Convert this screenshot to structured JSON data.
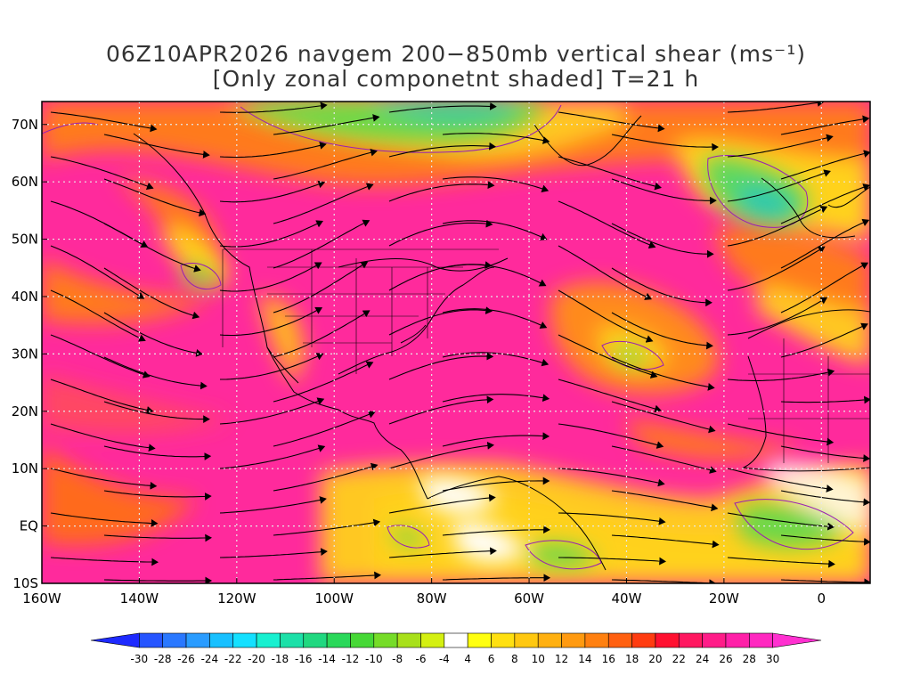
{
  "title": {
    "line1": "06Z10APR2026 navgem 200−850mb vertical shear (ms⁻¹)",
    "line2": "[Only zonal componetnt shaded] T=21 h"
  },
  "map": {
    "lon_range": [
      -160,
      10
    ],
    "lat_range": [
      -10,
      74
    ],
    "lat_ticks": [
      {
        "value": 70,
        "label": "70N"
      },
      {
        "value": 60,
        "label": "60N"
      },
      {
        "value": 50,
        "label": "50N"
      },
      {
        "value": 40,
        "label": "40N"
      },
      {
        "value": 30,
        "label": "30N"
      },
      {
        "value": 20,
        "label": "20N"
      },
      {
        "value": 10,
        "label": "10N"
      },
      {
        "value": 0,
        "label": "EQ"
      },
      {
        "value": -10,
        "label": "10S"
      }
    ],
    "lon_ticks": [
      {
        "value": -160,
        "label": "160W"
      },
      {
        "value": -140,
        "label": "140W"
      },
      {
        "value": -120,
        "label": "120W"
      },
      {
        "value": -100,
        "label": "100W"
      },
      {
        "value": -80,
        "label": "80W"
      },
      {
        "value": -60,
        "label": "60W"
      },
      {
        "value": -40,
        "label": "40W"
      },
      {
        "value": -20,
        "label": "20W"
      },
      {
        "value": 0,
        "label": "0"
      }
    ],
    "grid": "dotted",
    "shading_colors": {
      "strong_shear": "#ff2a9c",
      "moderate": "#ff6a1a",
      "weak": "#ffd21a",
      "negative": "#4cd84c"
    }
  },
  "colorbar": {
    "labels": [
      "-30",
      "-28",
      "-26",
      "-24",
      "-22",
      "-20",
      "-18",
      "-16",
      "-14",
      "-12",
      "-10",
      "-8",
      "-6",
      "-4",
      "4",
      "6",
      "8",
      "10",
      "12",
      "14",
      "16",
      "18",
      "20",
      "22",
      "24",
      "26",
      "28",
      "30"
    ],
    "colors": [
      "#1e2aff",
      "#2655ff",
      "#2a78ff",
      "#2a9cff",
      "#18c0ff",
      "#14e0ff",
      "#18f0d0",
      "#1ce0a8",
      "#20d880",
      "#2ad85a",
      "#46d836",
      "#76dc28",
      "#a8e01a",
      "#d4f012",
      "#ffffff",
      "#ffff10",
      "#ffe010",
      "#ffc810",
      "#ffb010",
      "#ff9a10",
      "#ff8010",
      "#ff6010",
      "#ff3c10",
      "#ff1030",
      "#ff1860",
      "#ff1c88",
      "#ff20a8",
      "#ff28c0",
      "#ff30d0"
    ]
  }
}
